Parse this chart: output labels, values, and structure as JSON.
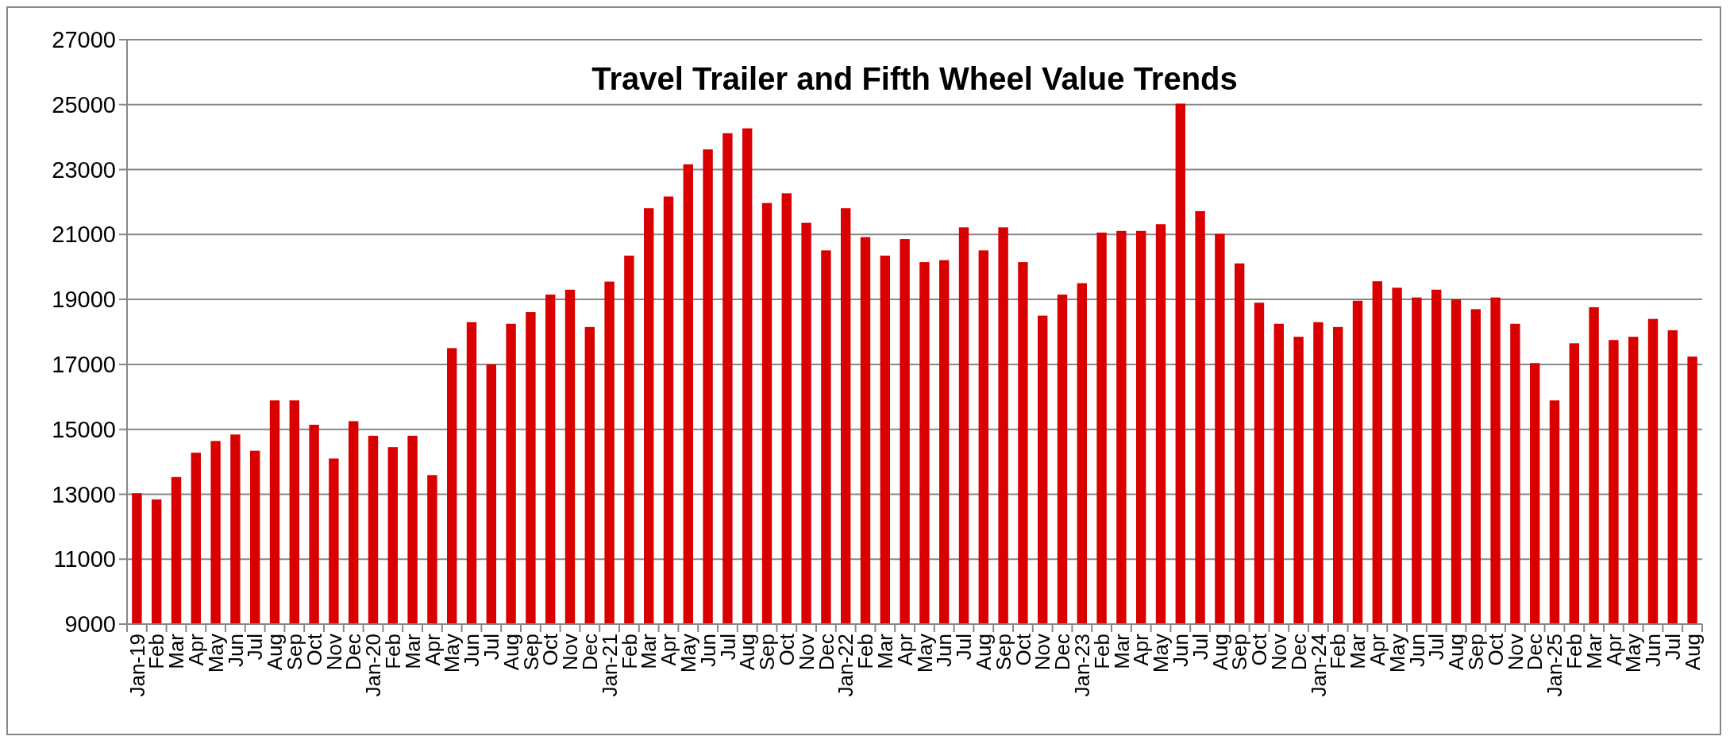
{
  "chart_data": {
    "type": "bar",
    "title": "Travel Trailer and Fifth Wheel Value Trends",
    "categories": [
      "Jan-19",
      "Feb",
      "Mar",
      "Apr",
      "May",
      "Jun",
      "Jul",
      "Aug",
      "Sep",
      "Oct",
      "Nov",
      "Dec",
      "Jan-20",
      "Feb",
      "Mar",
      "Apr",
      "May",
      "Jun",
      "Jul",
      "Aug",
      "Sep",
      "Oct",
      "Nov",
      "Dec",
      "Jan-21",
      "Feb",
      "Mar",
      "Apr",
      "May",
      "Jun",
      "Jul",
      "Aug",
      "Sep",
      "Oct",
      "Nov",
      "Dec",
      "Jan-22",
      "Feb",
      "Mar",
      "Apr",
      "May",
      "Jun",
      "Jul",
      "Aug",
      "Sep",
      "Oct",
      "Nov",
      "Dec",
      "Jan-23",
      "Feb",
      "Mar",
      "Apr",
      "May",
      "Jun",
      "Jul",
      "Aug",
      "Sep",
      "Oct",
      "Nov",
      "Dec",
      "Jan-24",
      "Feb",
      "Mar",
      "Apr",
      "May",
      "Jun",
      "Jul",
      "Aug",
      "Sep",
      "Oct",
      "Nov",
      "Dec",
      "Jan-25",
      "Feb",
      "Mar",
      "Apr",
      "May",
      "Jun",
      "Jul",
      "Aug"
    ],
    "values": [
      13030,
      12840,
      13530,
      14280,
      14640,
      14840,
      14340,
      15890,
      15890,
      15140,
      14100,
      15250,
      14800,
      14450,
      14800,
      13590,
      17500,
      18300,
      17000,
      18250,
      18610,
      19150,
      19300,
      18150,
      19550,
      20350,
      21810,
      22170,
      23160,
      23620,
      24120,
      24270,
      21970,
      22270,
      21360,
      20510,
      21810,
      20920,
      20350,
      20860,
      20150,
      20210,
      21220,
      20510,
      21220,
      20150,
      18500,
      19150,
      19500,
      21060,
      21110,
      21110,
      21320,
      25030,
      21720,
      21020,
      20110,
      18900,
      18250,
      17850,
      18300,
      18150,
      18960,
      19560,
      19360,
      19060,
      19300,
      19000,
      18700,
      19060,
      18250,
      17040,
      15890,
      17650,
      18760,
      17750,
      17850,
      18400,
      18050,
      17240
    ],
    "color": "#d90000",
    "ylim": [
      9000,
      27000
    ],
    "yticks": [
      9000,
      11000,
      13000,
      15000,
      17000,
      19000,
      21000,
      23000,
      25000,
      27000
    ],
    "grid": true
  }
}
